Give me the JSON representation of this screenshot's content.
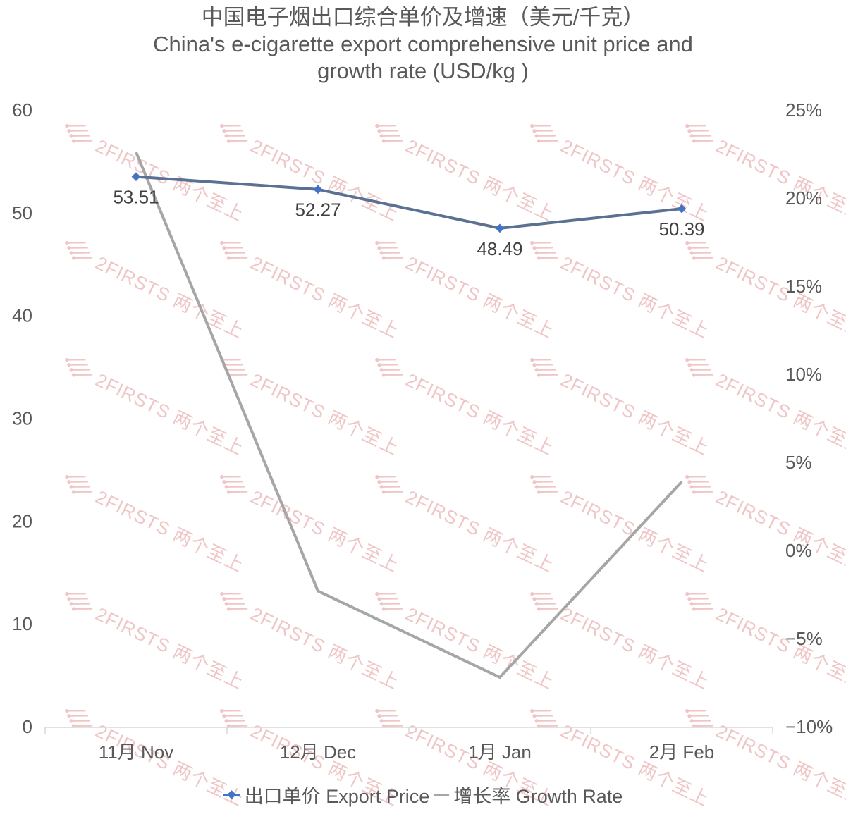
{
  "title": {
    "line1": "中国电子烟出口综合单价及增速（美元/千克）",
    "line2": "China's e-cigarette export comprehensive unit price and",
    "line3": "growth rate (USD/kg )"
  },
  "colors": {
    "price_line": "#5a7194",
    "price_marker": "#4472c4",
    "growth_line": "#a6a6a6",
    "axis": "#d9d9d9",
    "text": "#595959",
    "watermark": "#efc6c6"
  },
  "watermark": {
    "text": "2FIRSTS 两个至上"
  },
  "legend": {
    "items": [
      {
        "label": "出口单价 Export Price",
        "icon": "line-diamond-marker"
      },
      {
        "label": "增长率 Growth Rate",
        "icon": "line"
      }
    ]
  },
  "chart_data": {
    "type": "line",
    "title": "中国电子烟出口综合单价及增速（美元/千克） China's e-cigarette export comprehensive unit price and growth rate (USD/kg )",
    "xlabel": "",
    "ylabel": "",
    "categories": [
      "11月 Nov",
      "12月 Dec",
      "1月 Jan",
      "2月 Feb"
    ],
    "series": [
      {
        "name": "出口单价 Export Price",
        "axis": "left",
        "values": [
          53.51,
          52.27,
          48.49,
          50.39
        ],
        "data_labels": [
          "53.51",
          "52.27",
          "48.49",
          "50.39"
        ],
        "marker": "diamond"
      },
      {
        "name": "增长率 Growth Rate",
        "axis": "right",
        "values": [
          22.6,
          -2.3,
          -7.2,
          3.9
        ],
        "unit": "%",
        "marker": "none"
      }
    ],
    "ylim": [
      0,
      60
    ],
    "y_ticks": [
      "0",
      "10",
      "20",
      "30",
      "40",
      "50",
      "60"
    ],
    "y2lim": [
      -10,
      25
    ],
    "y2_ticks": [
      "−10%",
      "−5%",
      "0%",
      "5%",
      "10%",
      "15%",
      "20%",
      "25%"
    ],
    "grid": false,
    "legend_position": "bottom"
  }
}
